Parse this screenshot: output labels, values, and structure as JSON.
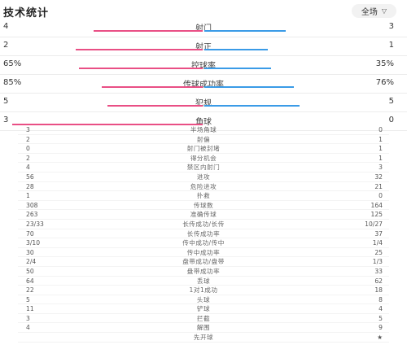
{
  "header": {
    "title": "技术统计",
    "scope_label": "全场"
  },
  "colors": {
    "home": "#e94f85",
    "away": "#3a9be7"
  },
  "bars": [
    {
      "label": "射门",
      "left": "4",
      "right": "3",
      "left_ratio": 0.571,
      "right_ratio": 0.429
    },
    {
      "label": "射正",
      "left": "2",
      "right": "1",
      "left_ratio": 0.667,
      "right_ratio": 0.333
    },
    {
      "label": "控球率",
      "left": "65%",
      "right": "35%",
      "left_ratio": 0.65,
      "right_ratio": 0.35
    },
    {
      "label": "传球成功率",
      "left": "85%",
      "right": "76%",
      "left_ratio": 0.528,
      "right_ratio": 0.472
    },
    {
      "label": "犯规",
      "left": "5",
      "right": "5",
      "left_ratio": 0.5,
      "right_ratio": 0.5
    },
    {
      "label": "角球",
      "left": "3",
      "right": "0",
      "left_ratio": 1.0,
      "right_ratio": 0.0
    }
  ],
  "table": [
    {
      "left": "3",
      "label": "半场角球",
      "right": "0"
    },
    {
      "left": "2",
      "label": "射偏",
      "right": "1"
    },
    {
      "left": "0",
      "label": "射门被封堵",
      "right": "1"
    },
    {
      "left": "2",
      "label": "得分机会",
      "right": "1"
    },
    {
      "left": "4",
      "label": "禁区内射门",
      "right": "3"
    },
    {
      "left": "56",
      "label": "进攻",
      "right": "32"
    },
    {
      "left": "28",
      "label": "危险进攻",
      "right": "21"
    },
    {
      "left": "1",
      "label": "扑救",
      "right": "0"
    },
    {
      "left": "308",
      "label": "传球数",
      "right": "164"
    },
    {
      "left": "263",
      "label": "准确传球",
      "right": "125"
    },
    {
      "left": "23/33",
      "label": "长传成功/长传",
      "right": "10/27"
    },
    {
      "left": "70",
      "label": "长传成功率",
      "right": "37"
    },
    {
      "left": "3/10",
      "label": "传中成功/传中",
      "right": "1/4"
    },
    {
      "left": "30",
      "label": "传中成功率",
      "right": "25"
    },
    {
      "left": "2/4",
      "label": "盘带成功/盘带",
      "right": "1/3"
    },
    {
      "left": "50",
      "label": "盘带成功率",
      "right": "33"
    },
    {
      "left": "64",
      "label": "丢球",
      "right": "62"
    },
    {
      "left": "22",
      "label": "1对1成功",
      "right": "18"
    },
    {
      "left": "5",
      "label": "头球",
      "right": "8"
    },
    {
      "left": "11",
      "label": "铲球",
      "right": "4"
    },
    {
      "left": "3",
      "label": "拦截",
      "right": "5"
    },
    {
      "left": "4",
      "label": "解围",
      "right": "9"
    },
    {
      "left": "",
      "label": "先开球",
      "right": "★"
    }
  ]
}
